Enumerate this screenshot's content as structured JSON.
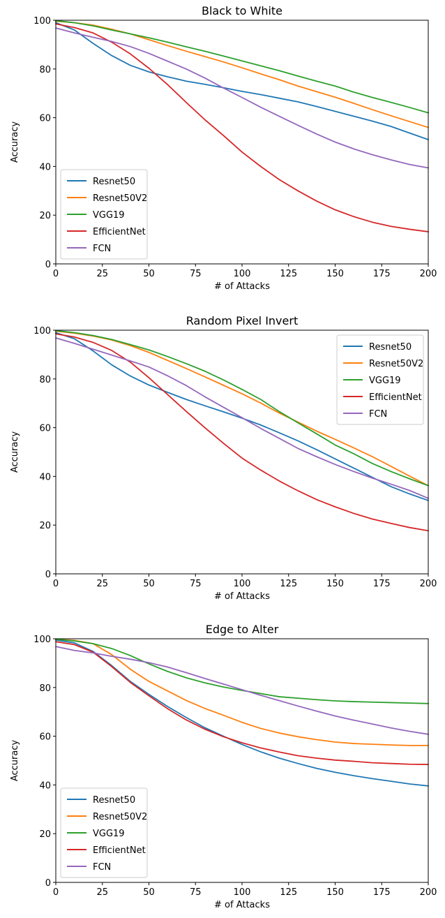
{
  "colors": {
    "Resnet50": "#1f77b4",
    "Resnet50V2": "#ff7f0e",
    "VGG19": "#2ca02c",
    "EfficientNet": "#d62728",
    "FCN": "#9467bd"
  },
  "chart_data": [
    {
      "type": "line",
      "title": "Black to White",
      "xlabel": "# of Attacks",
      "ylabel": "Accuracy",
      "xlim": [
        0,
        200
      ],
      "ylim": [
        0,
        100
      ],
      "xticks": [
        0,
        25,
        50,
        75,
        100,
        125,
        150,
        175,
        200
      ],
      "yticks": [
        0,
        20,
        40,
        60,
        80,
        100
      ],
      "grid": false,
      "legend": "lower-left",
      "x": [
        0,
        10,
        20,
        30,
        40,
        50,
        60,
        70,
        80,
        90,
        100,
        110,
        120,
        130,
        140,
        150,
        160,
        170,
        180,
        190,
        200
      ],
      "series": [
        {
          "name": "Resnet50",
          "values": [
            99,
            96,
            90.5,
            85.5,
            81.5,
            78.8,
            76.8,
            75,
            73.7,
            72.3,
            70.8,
            69.5,
            68,
            66.5,
            64.6,
            62.6,
            60.6,
            58.6,
            56.4,
            53.7,
            51
          ]
        },
        {
          "name": "Resnet50V2",
          "values": [
            99.6,
            99,
            98,
            96.3,
            94.4,
            92,
            89.6,
            87.3,
            85.1,
            82.9,
            80.5,
            78,
            75.6,
            73,
            70.7,
            68.4,
            65.9,
            63.3,
            60.8,
            58.4,
            56
          ]
        },
        {
          "name": "VGG19",
          "values": [
            99.8,
            99,
            97.7,
            96,
            94.4,
            92.8,
            91,
            89.1,
            87.3,
            85.3,
            83.3,
            81.3,
            79.3,
            77.1,
            75,
            73,
            70.5,
            68.3,
            66.3,
            64.2,
            62
          ]
        },
        {
          "name": "EfficientNet",
          "values": [
            98.5,
            97,
            94.8,
            91,
            86.2,
            80.3,
            73.6,
            66.3,
            59.2,
            52.7,
            45.9,
            40,
            34.6,
            30,
            25.8,
            22.2,
            19.4,
            17.1,
            15.4,
            14.2,
            13.2
          ]
        },
        {
          "name": "FCN",
          "values": [
            96.8,
            94.8,
            93,
            91.3,
            89.2,
            86.4,
            83.2,
            80,
            76.3,
            72.2,
            68.3,
            64.3,
            60.6,
            56.9,
            53.3,
            50,
            47.2,
            44.8,
            42.7,
            40.8,
            39.4
          ]
        }
      ]
    },
    {
      "type": "line",
      "title": "Random Pixel Invert",
      "xlabel": "# of Attacks",
      "ylabel": "Accuracy",
      "xlim": [
        0,
        200
      ],
      "ylim": [
        0,
        100
      ],
      "xticks": [
        0,
        25,
        50,
        75,
        100,
        125,
        150,
        175,
        200
      ],
      "yticks": [
        0,
        20,
        40,
        60,
        80,
        100
      ],
      "grid": false,
      "legend": "top-right",
      "x": [
        0,
        10,
        20,
        30,
        40,
        50,
        60,
        70,
        80,
        90,
        100,
        110,
        120,
        130,
        140,
        150,
        160,
        170,
        180,
        190,
        200
      ],
      "series": [
        {
          "name": "Resnet50",
          "values": [
            99,
            96.5,
            91.5,
            85.8,
            81.2,
            77.5,
            74.5,
            71.6,
            69,
            66.5,
            63.9,
            61.1,
            57.9,
            54.6,
            51,
            47.2,
            43.4,
            39.6,
            35.8,
            32.8,
            30.1
          ]
        },
        {
          "name": "Resnet50V2",
          "values": [
            99.6,
            98.8,
            97.6,
            96,
            93.7,
            90.9,
            87.6,
            84.3,
            80.9,
            77.4,
            73.9,
            70.1,
            66,
            62.3,
            58.6,
            55.2,
            51.7,
            48.1,
            44.1,
            40.1,
            36.2
          ]
        },
        {
          "name": "VGG19",
          "values": [
            99.8,
            99,
            97.8,
            96.2,
            94.1,
            91.9,
            89.2,
            86.3,
            83.2,
            79.6,
            75.7,
            71.6,
            66.6,
            62,
            57.5,
            52.9,
            49.3,
            45.3,
            42,
            39,
            36.2
          ]
        },
        {
          "name": "EfficientNet",
          "values": [
            98.5,
            97.2,
            95,
            91.7,
            86.9,
            80.5,
            73.6,
            66.7,
            60,
            53.6,
            47.5,
            42.6,
            38.1,
            34.1,
            30.5,
            27.5,
            24.8,
            22.5,
            20.7,
            19,
            17.7
          ]
        },
        {
          "name": "FCN",
          "values": [
            96.8,
            94.6,
            92.2,
            89.8,
            87.4,
            84.9,
            81.3,
            77.3,
            72.7,
            68.4,
            64.1,
            59.7,
            55.6,
            51.5,
            48.1,
            44.9,
            42,
            39.3,
            36.8,
            34.2,
            31
          ]
        }
      ]
    },
    {
      "type": "line",
      "title": "Edge to Alter",
      "xlabel": "# of Attacks",
      "ylabel": "Accuracy",
      "xlim": [
        0,
        200
      ],
      "ylim": [
        0,
        100
      ],
      "xticks": [
        0,
        25,
        50,
        75,
        100,
        125,
        150,
        175,
        200
      ],
      "yticks": [
        0,
        20,
        40,
        60,
        80,
        100
      ],
      "grid": false,
      "legend": "lower-left",
      "x": [
        0,
        10,
        20,
        30,
        40,
        50,
        60,
        70,
        80,
        90,
        100,
        110,
        120,
        130,
        140,
        150,
        160,
        170,
        180,
        190,
        200
      ],
      "series": [
        {
          "name": "Resnet50",
          "values": [
            99.5,
            98.3,
            94.8,
            89,
            82.5,
            77.2,
            72.2,
            67.7,
            63.5,
            60,
            56.6,
            53.6,
            51,
            48.8,
            46.8,
            45.2,
            43.8,
            42.6,
            41.5,
            40.4,
            39.6
          ]
        },
        {
          "name": "Resnet50V2",
          "values": [
            99.8,
            99.3,
            98,
            93.5,
            87.5,
            82.5,
            78.6,
            74.7,
            71.4,
            68.6,
            65.7,
            63.2,
            61.3,
            59.8,
            58.6,
            57.6,
            57,
            56.7,
            56.4,
            56.2,
            56.2
          ]
        },
        {
          "name": "VGG19",
          "values": [
            99.8,
            99.1,
            98,
            96,
            93.1,
            89.7,
            86.6,
            84,
            81.9,
            80.2,
            78.8,
            77.5,
            76.2,
            75.6,
            75,
            74.5,
            74.2,
            74,
            73.8,
            73.6,
            73.4
          ]
        },
        {
          "name": "EfficientNet",
          "values": [
            98.8,
            97.6,
            94.5,
            88.6,
            82.1,
            76.6,
            71.3,
            66.7,
            62.9,
            59.8,
            57.3,
            55.2,
            53.5,
            52,
            51,
            50.2,
            49.7,
            49.1,
            48.8,
            48.5,
            48.4
          ]
        },
        {
          "name": "FCN",
          "values": [
            96.8,
            95.2,
            94.2,
            92.8,
            91.6,
            90.2,
            88.4,
            86.1,
            83.7,
            81.4,
            79.1,
            76.8,
            74.6,
            72.4,
            70.3,
            68.3,
            66.6,
            65,
            63.4,
            62,
            60.8
          ]
        }
      ]
    }
  ]
}
